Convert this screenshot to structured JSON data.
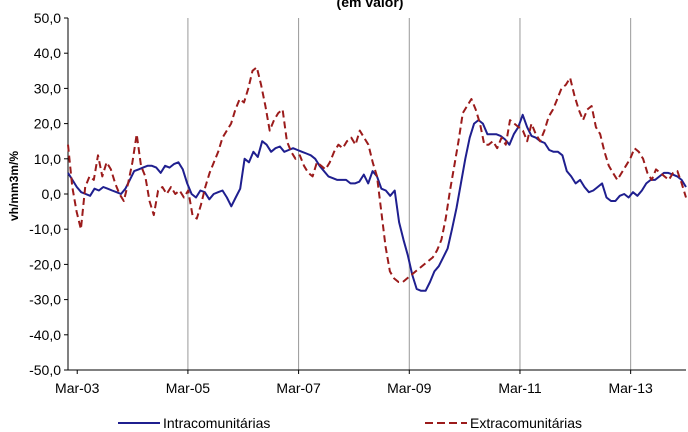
{
  "chart_data": {
    "type": "line",
    "title": "(em valor)",
    "ylabel": "vh/mm3m/%",
    "xlabel": "",
    "ylim": [
      -50,
      50
    ],
    "yticks": [
      "-50,0",
      "-40,0",
      "-30,0",
      "-20,0",
      "-10,0",
      "0,0",
      "10,0",
      "20,0",
      "30,0",
      "40,0",
      "50,0"
    ],
    "xticks": [
      "Mar-03",
      "Mar-05",
      "Mar-07",
      "Mar-09",
      "Mar-11",
      "Mar-13"
    ],
    "x_start": "Jan-03",
    "x_end": "Mar-14",
    "vertical_gridlines": true,
    "legend_position": "bottom",
    "series": [
      {
        "name": "Intracomunitárias",
        "color": "#1f1f8f",
        "dash": "solid",
        "values": [
          6,
          4,
          2,
          0.5,
          0,
          -0.5,
          1.5,
          1,
          2,
          1.5,
          1,
          0.5,
          0,
          1.5,
          4,
          6.5,
          7,
          7.5,
          8,
          8,
          7.5,
          6,
          8,
          7.5,
          8.5,
          9,
          7,
          3,
          0,
          -1,
          1,
          0.5,
          -1.5,
          0,
          0.5,
          1,
          -1,
          -3.5,
          -1,
          1.5,
          10,
          9,
          12,
          10.5,
          15,
          14,
          12,
          13,
          13.5,
          12,
          12.5,
          13,
          12.5,
          12,
          11.5,
          11,
          10,
          8,
          6.5,
          5,
          4.5,
          4,
          4,
          4,
          3,
          3,
          3.5,
          5.5,
          3,
          6.5,
          5,
          1.5,
          1,
          -0.5,
          1,
          -8,
          -13,
          -17.5,
          -23,
          -27,
          -27.5,
          -27.5,
          -25,
          -22,
          -20.5,
          -18,
          -15.5,
          -10,
          -4,
          3,
          10,
          16,
          20,
          21,
          20,
          17,
          17,
          17,
          16.5,
          15.5,
          14,
          17,
          19,
          22.5,
          19,
          16.5,
          16,
          15,
          14.5,
          12.5,
          12,
          12,
          11,
          6.5,
          5,
          3,
          4,
          2,
          0.5,
          1,
          2,
          3,
          -1,
          -2,
          -2,
          -0.5,
          0,
          -1,
          0.5,
          -0.5,
          1,
          3,
          4,
          4,
          5,
          6,
          6,
          5.5,
          5,
          4,
          2
        ]
      },
      {
        "name": "Extracomunitárias",
        "color": "#9b1b1b",
        "dash": "dashed",
        "values": [
          14,
          2,
          -5,
          -10,
          2,
          5,
          4,
          11,
          5,
          9,
          7,
          3,
          0,
          -2,
          3,
          9,
          17,
          8,
          5,
          -2,
          -6,
          1,
          2,
          0,
          2,
          0,
          1,
          -1,
          1,
          -6,
          -7,
          -3,
          2,
          6,
          9,
          12,
          16,
          18,
          20,
          24,
          27,
          26,
          30,
          35,
          36,
          31,
          25,
          18,
          21,
          23,
          24,
          15,
          12,
          10,
          11,
          8,
          6,
          5,
          9,
          8,
          7,
          9,
          12,
          14,
          13,
          15,
          16,
          14,
          18,
          16,
          14,
          9,
          5,
          -5,
          -15,
          -22,
          -24,
          -25,
          -25,
          -24,
          -23,
          -22,
          -21,
          -20,
          -19,
          -18,
          -16,
          -13,
          -7,
          1,
          8,
          15,
          23,
          25,
          27,
          24,
          20,
          14,
          14,
          15,
          13,
          16,
          14,
          21,
          20,
          19,
          18,
          15,
          20,
          17,
          15,
          18,
          22,
          24,
          27,
          30,
          31,
          33,
          28,
          24,
          21,
          24,
          25,
          19,
          17,
          12,
          8,
          6,
          4,
          6,
          8,
          10,
          13,
          12,
          10,
          6,
          4,
          7,
          6,
          5,
          4,
          6,
          6.5,
          3,
          -1
        ]
      }
    ]
  }
}
